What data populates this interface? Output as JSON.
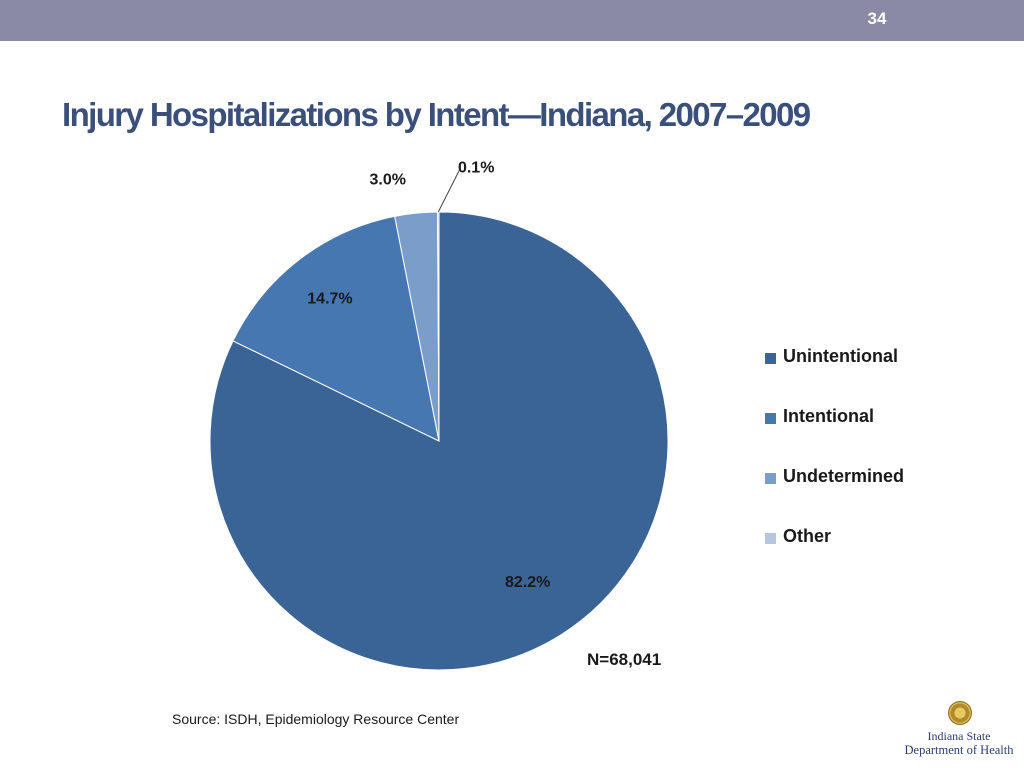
{
  "slide_number": "34",
  "title": "Injury Hospitalizations by Intent—Indiana, 2007–2009",
  "chart_data": {
    "type": "pie",
    "categories": [
      "Unintentional",
      "Intentional",
      "Undetermined",
      "Other"
    ],
    "values": [
      82.2,
      14.7,
      3.0,
      0.1
    ],
    "data_labels": [
      "82.2%",
      "14.7%",
      "3.0%",
      "0.1%"
    ],
    "colors": [
      "#3b6496",
      "#4677b0",
      "#7b9dc9",
      "#b4c6e0"
    ],
    "legend_position": "right",
    "annotation": "N=68,041"
  },
  "legend": [
    {
      "label": "Unintentional",
      "color": "#3b6496"
    },
    {
      "label": "Intentional",
      "color": "#4677b0"
    },
    {
      "label": "Undetermined",
      "color": "#7b9dc9"
    },
    {
      "label": "Other",
      "color": "#b4c6e0"
    }
  ],
  "source": "Source: ISDH, Epidemiology Resource Center",
  "logo": {
    "line1": "Indiana State",
    "line2": "Department of Health"
  }
}
